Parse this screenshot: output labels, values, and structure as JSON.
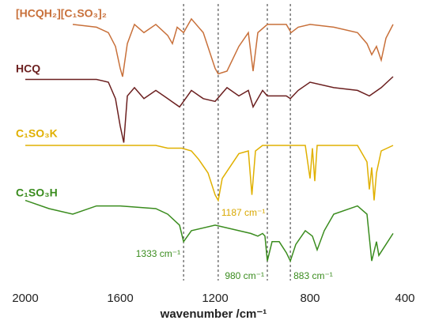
{
  "chart_data": {
    "type": "line",
    "x_label": "wavenumber /cm⁻¹",
    "xlim": [
      2000,
      400
    ],
    "xticks": [
      2000,
      1600,
      1200,
      800,
      400
    ],
    "ylim": [
      0,
      100
    ],
    "series": [
      {
        "name": "[HCQH₂][C₁SO₃]₂",
        "color": "#c8703a",
        "x": [
          1800,
          1700,
          1650,
          1620,
          1600,
          1590,
          1570,
          1540,
          1500,
          1450,
          1400,
          1380,
          1360,
          1333,
          1300,
          1250,
          1200,
          1187,
          1150,
          1100,
          1060,
          1040,
          1020,
          980,
          950,
          900,
          880,
          850,
          800,
          700,
          600,
          560,
          540,
          520,
          500,
          480,
          450
        ],
        "values": [
          94,
          93,
          91,
          86,
          78,
          75,
          87,
          94,
          91,
          94,
          90,
          87,
          93,
          91,
          96,
          91,
          78,
          76,
          77,
          86,
          91,
          77,
          91,
          94,
          94,
          94,
          91,
          93,
          94,
          93,
          91,
          87,
          83,
          86,
          81,
          89,
          94
        ]
      },
      {
        "name": "HCQ",
        "color": "#6b1f1f",
        "x": [
          2000,
          1700,
          1650,
          1620,
          1600,
          1585,
          1570,
          1540,
          1500,
          1450,
          1400,
          1350,
          1333,
          1300,
          1250,
          1200,
          1150,
          1100,
          1060,
          1040,
          1000,
          980,
          900,
          883,
          850,
          800,
          700,
          600,
          550,
          500,
          450
        ],
        "values": [
          74,
          74,
          73,
          67,
          57,
          51,
          68,
          71,
          67,
          70,
          67,
          64,
          66,
          70,
          67,
          66,
          71,
          68,
          70,
          64,
          70,
          68,
          68,
          67,
          70,
          73,
          71,
          70,
          68,
          71,
          75
        ]
      },
      {
        "name": "C₁SO₃K",
        "color": "#e0b000",
        "x": [
          2000,
          1450,
          1400,
          1340,
          1300,
          1270,
          1230,
          1200,
          1187,
          1170,
          1100,
          1060,
          1045,
          1030,
          1000,
          820,
          800,
          790,
          780,
          770,
          600,
          560,
          550,
          540,
          530,
          520,
          500,
          450
        ],
        "values": [
          50,
          50,
          49,
          49,
          48,
          45,
          40,
          32,
          30,
          38,
          47,
          48,
          32,
          48,
          50,
          50,
          38,
          49,
          37,
          50,
          50,
          44,
          34,
          42,
          30,
          40,
          48,
          50
        ]
      },
      {
        "name": "C₁SO₃H",
        "color": "#3a8c1e",
        "x": [
          2000,
          1900,
          1800,
          1700,
          1600,
          1450,
          1400,
          1350,
          1333,
          1300,
          1200,
          1100,
          1050,
          1020,
          1000,
          990,
          980,
          960,
          930,
          900,
          883,
          860,
          820,
          790,
          770,
          740,
          700,
          600,
          560,
          540,
          520,
          510,
          480,
          450
        ],
        "values": [
          30,
          27,
          25,
          28,
          28,
          27,
          25,
          21,
          15,
          19,
          21,
          19,
          18,
          17,
          18,
          17,
          8,
          15,
          15,
          11,
          8,
          14,
          19,
          17,
          12,
          19,
          25,
          28,
          25,
          8,
          15,
          10,
          14,
          18
        ]
      }
    ],
    "annotations": [
      {
        "text": "1333 cm⁻¹",
        "x": 1333,
        "color": "#3a8c1e"
      },
      {
        "text": "1187 cm⁻¹",
        "x": 1187,
        "color": "#d9a800"
      },
      {
        "text": "980 cm⁻¹",
        "x": 980,
        "color": "#3a8c1e"
      },
      {
        "text": "883 cm⁻¹",
        "x": 883,
        "color": "#3a8c1e"
      }
    ]
  }
}
